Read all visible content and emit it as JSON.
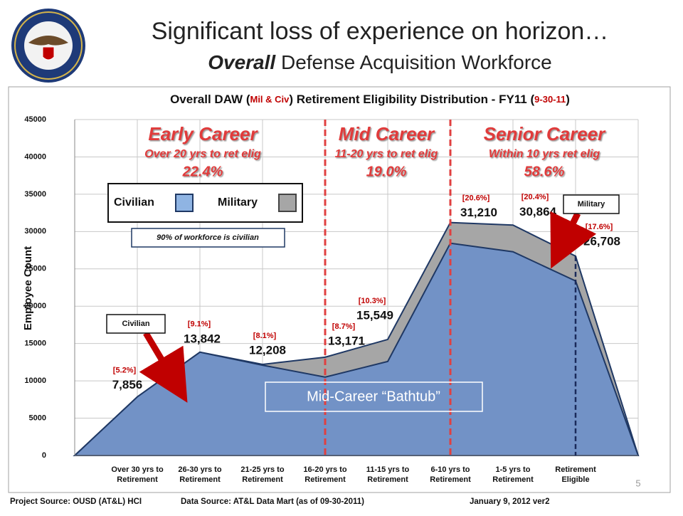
{
  "header": {
    "title": "Significant loss of experience on horizon…",
    "subtitle_em": "Overall",
    "subtitle": "Defense Acquisition Workforce"
  },
  "chart_data": {
    "type": "stacked-area",
    "title_parts": [
      "Overall DAW (",
      "Mil & Civ",
      ") Retirement Eligibility Distribution - FY11 (",
      "9-30-11",
      ")"
    ],
    "y_label": "Employee Count",
    "categories": [
      null,
      "Over 30 yrs to Retirement",
      "26-30 yrs to Retirement",
      "21-25 yrs to Retirement",
      "16-20 yrs to Retirement",
      "11-15 yrs to Retirement",
      "6-10 yrs to Retirement",
      "1-5 yrs to Retirement",
      "Retirement Eligible",
      null
    ],
    "series": [
      {
        "name": "Civilian",
        "color": "#7292c6",
        "values": [
          0,
          7856,
          13842,
          12100,
          10500,
          12600,
          28440,
          27290,
          23380,
          0
        ]
      },
      {
        "name": "Military",
        "color": "#a6a6a6",
        "values": [
          0,
          0,
          0,
          108,
          2671,
          2949,
          2770,
          3574,
          3328,
          0
        ]
      }
    ],
    "totals": {
      "values": [
        0,
        7856,
        13842,
        12208,
        13171,
        15549,
        31210,
        30864,
        26708,
        0
      ],
      "value_labels": [
        null,
        "7,856",
        "13,842",
        "12,208",
        "13,171",
        "15,549",
        "31,210",
        "30,864",
        "26,708",
        null
      ],
      "share_labels": [
        null,
        "[5.2%]",
        "[9.1%]",
        "[8.1%]",
        "[8.7%]",
        "[10.3%]",
        "[20.6%]",
        "[20.4%]",
        "[17.6%]",
        null
      ]
    },
    "ylim": [
      0,
      45000
    ],
    "yticks": [
      0,
      5000,
      10000,
      15000,
      20000,
      25000,
      30000,
      35000,
      40000,
      45000
    ],
    "grid": true,
    "regions": [
      {
        "title": "Early Career",
        "sub": "Over 20 yrs to ret elig",
        "share": "22.4%"
      },
      {
        "title": "Mid Career",
        "sub": "11-20 yrs to ret elig",
        "share": "19.0%"
      },
      {
        "title": "Senior Career",
        "sub": "Within 10 yrs ret elig",
        "share": "58.6%"
      }
    ],
    "note": "90% of workforce is civilian",
    "callout_civilian": "Civilian",
    "callout_military": "Military",
    "bathtub": "Mid-Career “Bathtub”",
    "page_number": "5"
  },
  "footer": {
    "project": "Project Source: OUSD (AT&L) HCI",
    "data": "Data Source: AT&L Data Mart (as of 09-30-2011)",
    "date": "January 9, 2012 ver2"
  }
}
